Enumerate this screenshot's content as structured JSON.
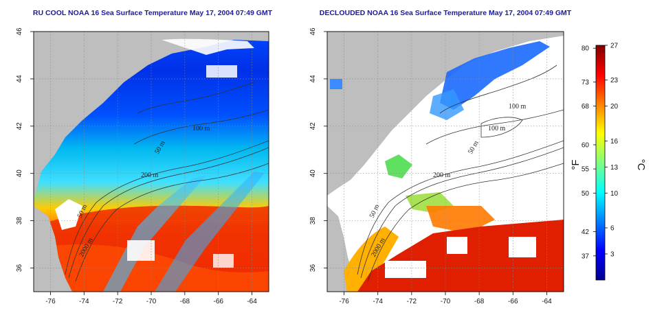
{
  "panels": [
    {
      "title": "RU COOL NOAA 16 Sea Surface Temperature May 17, 2004 07:49 GMT",
      "contour_labels": [
        "100 m",
        "50 m",
        "200 m",
        "50 m",
        "2000 m"
      ]
    },
    {
      "title": "DECLOUDED NOAA 16 Sea Surface Temperature May 17, 2004 07:49 GMT",
      "contour_labels": [
        "100 m",
        "100 m",
        "50 m",
        "200 m",
        "50 m",
        "2000 m"
      ]
    }
  ],
  "axes": {
    "lon_ticks": [
      "-76",
      "-74",
      "-72",
      "-70",
      "-68",
      "-66",
      "-64"
    ],
    "lat_ticks": [
      "36",
      "38",
      "40",
      "42",
      "44",
      "46"
    ],
    "lon_range": [
      -77.0,
      -63.0
    ],
    "lat_range": [
      35.0,
      46.0
    ],
    "grid": "dotted"
  },
  "colorbar": {
    "fahrenheit_label": "°F",
    "celsius_label": "°C",
    "fahrenheit_ticks": [
      "80",
      "73",
      "68",
      "60",
      "55",
      "50",
      "42",
      "37"
    ],
    "celsius_ticks": [
      "27",
      "23",
      "20",
      "16",
      "13",
      "10",
      "6",
      "3"
    ],
    "range_c": [
      0,
      27
    ],
    "colors": [
      "#00008f",
      "#0000ff",
      "#0080ff",
      "#00ffff",
      "#80ff80",
      "#ffff00",
      "#ff8000",
      "#ff0000",
      "#800000"
    ]
  },
  "colors": {
    "land": "#bebebe",
    "cloud": "#ffffff",
    "title": "#1a1aa0"
  }
}
